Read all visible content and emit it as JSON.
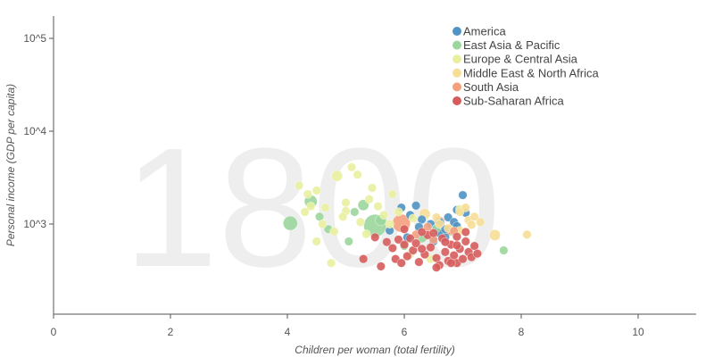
{
  "chart_data": {
    "type": "scatter",
    "year": "1800",
    "xlabel": "Children per woman (total fertility)",
    "ylabel": "Personal income (GDP per capita)",
    "xlim": [
      0,
      11
    ],
    "ylim": [
      140,
      170000
    ],
    "yscale": "log",
    "x_ticks": [
      {
        "value": 0,
        "label": "0"
      },
      {
        "value": 2,
        "label": "2"
      },
      {
        "value": 4,
        "label": "4"
      },
      {
        "value": 6,
        "label": "6"
      },
      {
        "value": 8,
        "label": "8"
      },
      {
        "value": 10,
        "label": "10"
      }
    ],
    "y_ticks": [
      {
        "value": 1000,
        "label": "10^3"
      },
      {
        "value": 10000,
        "label": "10^4"
      },
      {
        "value": 100000,
        "label": "10^5"
      }
    ],
    "legend_position": "top-right",
    "series": [
      {
        "name": "America",
        "color": "#4f94c4",
        "points": [
          {
            "x": 5.95,
            "y": 1500,
            "size": 1
          },
          {
            "x": 6.1,
            "y": 1250,
            "size": 1
          },
          {
            "x": 6.3,
            "y": 1120,
            "size": 1
          },
          {
            "x": 6.45,
            "y": 1000,
            "size": 1
          },
          {
            "x": 6.55,
            "y": 890,
            "size": 1
          },
          {
            "x": 6.6,
            "y": 800,
            "size": 1
          },
          {
            "x": 6.7,
            "y": 720,
            "size": 1
          },
          {
            "x": 6.75,
            "y": 1180,
            "size": 1
          },
          {
            "x": 6.85,
            "y": 1050,
            "size": 1
          },
          {
            "x": 6.9,
            "y": 950,
            "size": 1
          },
          {
            "x": 7.0,
            "y": 2050,
            "size": 1
          },
          {
            "x": 7.05,
            "y": 1320,
            "size": 1
          },
          {
            "x": 5.75,
            "y": 850,
            "size": 1
          },
          {
            "x": 6.25,
            "y": 930,
            "size": 1
          },
          {
            "x": 6.5,
            "y": 650,
            "size": 1
          },
          {
            "x": 6.7,
            "y": 880,
            "size": 1
          },
          {
            "x": 6.9,
            "y": 1420,
            "size": 1
          },
          {
            "x": 6.2,
            "y": 1580,
            "size": 1
          },
          {
            "x": 6.05,
            "y": 720,
            "size": 1
          },
          {
            "x": 6.6,
            "y": 1050,
            "size": 1
          }
        ]
      },
      {
        "name": "East Asia & Pacific",
        "color": "#9bd69d",
        "points": [
          {
            "x": 5.5,
            "y": 960,
            "size": 12
          },
          {
            "x": 4.05,
            "y": 1020,
            "size": 4
          },
          {
            "x": 4.4,
            "y": 1750,
            "size": 3
          },
          {
            "x": 5.3,
            "y": 1600,
            "size": 2
          },
          {
            "x": 5.6,
            "y": 1100,
            "size": 2
          },
          {
            "x": 6.3,
            "y": 720,
            "size": 2
          },
          {
            "x": 6.8,
            "y": 850,
            "size": 2
          },
          {
            "x": 4.7,
            "y": 880,
            "size": 1
          },
          {
            "x": 5.05,
            "y": 650,
            "size": 1
          },
          {
            "x": 6.0,
            "y": 580,
            "size": 1
          },
          {
            "x": 7.7,
            "y": 520,
            "size": 1
          },
          {
            "x": 6.55,
            "y": 900,
            "size": 1
          },
          {
            "x": 4.55,
            "y": 1200,
            "size": 1
          },
          {
            "x": 5.15,
            "y": 1350,
            "size": 1
          }
        ]
      },
      {
        "name": "Europe & Central Asia",
        "color": "#e9ef9f",
        "points": [
          {
            "x": 4.85,
            "y": 3300,
            "size": 2
          },
          {
            "x": 5.1,
            "y": 4100,
            "size": 1
          },
          {
            "x": 5.2,
            "y": 3400,
            "size": 1
          },
          {
            "x": 4.2,
            "y": 2600,
            "size": 1
          },
          {
            "x": 4.5,
            "y": 2300,
            "size": 1
          },
          {
            "x": 4.65,
            "y": 1500,
            "size": 1
          },
          {
            "x": 5.0,
            "y": 1380,
            "size": 1
          },
          {
            "x": 5.4,
            "y": 1850,
            "size": 1
          },
          {
            "x": 5.8,
            "y": 2100,
            "size": 1
          },
          {
            "x": 4.3,
            "y": 1350,
            "size": 1
          },
          {
            "x": 4.6,
            "y": 1000,
            "size": 1
          },
          {
            "x": 4.8,
            "y": 830,
            "size": 1
          },
          {
            "x": 5.35,
            "y": 780,
            "size": 1
          },
          {
            "x": 5.55,
            "y": 1550,
            "size": 1
          },
          {
            "x": 4.95,
            "y": 1200,
            "size": 1
          },
          {
            "x": 5.25,
            "y": 1050,
            "size": 1
          },
          {
            "x": 4.75,
            "y": 380,
            "size": 1
          },
          {
            "x": 6.1,
            "y": 470,
            "size": 1
          },
          {
            "x": 6.45,
            "y": 420,
            "size": 1
          },
          {
            "x": 4.5,
            "y": 650,
            "size": 1
          },
          {
            "x": 5.65,
            "y": 1250,
            "size": 1
          },
          {
            "x": 4.35,
            "y": 2100,
            "size": 1
          },
          {
            "x": 5.45,
            "y": 2450,
            "size": 1
          },
          {
            "x": 5.0,
            "y": 1700,
            "size": 1
          },
          {
            "x": 5.9,
            "y": 1350,
            "size": 1
          },
          {
            "x": 6.15,
            "y": 1150,
            "size": 1
          },
          {
            "x": 4.4,
            "y": 1550,
            "size": 1
          },
          {
            "x": 5.75,
            "y": 1000,
            "size": 1
          },
          {
            "x": 6.95,
            "y": 1450,
            "size": 1
          }
        ]
      },
      {
        "name": "Middle East & North Africa",
        "color": "#f6de96",
        "points": [
          {
            "x": 6.35,
            "y": 1280,
            "size": 2
          },
          {
            "x": 6.55,
            "y": 1180,
            "size": 1
          },
          {
            "x": 6.85,
            "y": 950,
            "size": 2
          },
          {
            "x": 6.95,
            "y": 1350,
            "size": 1
          },
          {
            "x": 7.05,
            "y": 1500,
            "size": 1
          },
          {
            "x": 7.1,
            "y": 1100,
            "size": 1
          },
          {
            "x": 7.15,
            "y": 980,
            "size": 1
          },
          {
            "x": 7.3,
            "y": 1050,
            "size": 1
          },
          {
            "x": 7.55,
            "y": 760,
            "size": 2
          },
          {
            "x": 8.1,
            "y": 770,
            "size": 1
          },
          {
            "x": 6.75,
            "y": 900,
            "size": 1
          },
          {
            "x": 6.95,
            "y": 850,
            "size": 1
          },
          {
            "x": 6.6,
            "y": 1000,
            "size": 1
          },
          {
            "x": 7.2,
            "y": 1200,
            "size": 1
          }
        ]
      },
      {
        "name": "South Asia",
        "color": "#f4a07d",
        "points": [
          {
            "x": 5.95,
            "y": 1020,
            "size": 7
          },
          {
            "x": 6.6,
            "y": 1050,
            "size": 2
          },
          {
            "x": 6.75,
            "y": 860,
            "size": 2
          },
          {
            "x": 6.4,
            "y": 930,
            "size": 1
          },
          {
            "x": 6.85,
            "y": 840,
            "size": 1
          },
          {
            "x": 6.2,
            "y": 770,
            "size": 1
          },
          {
            "x": 6.5,
            "y": 680,
            "size": 1
          }
        ]
      },
      {
        "name": "Sub-Saharan Africa",
        "color": "#d65c5c",
        "points": [
          {
            "x": 5.6,
            "y": 350,
            "size": 1
          },
          {
            "x": 5.85,
            "y": 420,
            "size": 1
          },
          {
            "x": 5.95,
            "y": 380,
            "size": 1
          },
          {
            "x": 6.05,
            "y": 450,
            "size": 1
          },
          {
            "x": 6.15,
            "y": 520,
            "size": 1
          },
          {
            "x": 6.25,
            "y": 390,
            "size": 1
          },
          {
            "x": 6.35,
            "y": 470,
            "size": 1
          },
          {
            "x": 6.45,
            "y": 560,
            "size": 1
          },
          {
            "x": 6.55,
            "y": 430,
            "size": 1
          },
          {
            "x": 6.6,
            "y": 360,
            "size": 1
          },
          {
            "x": 6.7,
            "y": 500,
            "size": 1
          },
          {
            "x": 6.75,
            "y": 400,
            "size": 1
          },
          {
            "x": 6.8,
            "y": 600,
            "size": 1
          },
          {
            "x": 6.85,
            "y": 460,
            "size": 1
          },
          {
            "x": 6.9,
            "y": 380,
            "size": 1
          },
          {
            "x": 6.95,
            "y": 540,
            "size": 1
          },
          {
            "x": 7.0,
            "y": 420,
            "size": 1
          },
          {
            "x": 7.05,
            "y": 650,
            "size": 1
          },
          {
            "x": 7.1,
            "y": 500,
            "size": 1
          },
          {
            "x": 7.15,
            "y": 440,
            "size": 1
          },
          {
            "x": 7.2,
            "y": 580,
            "size": 1
          },
          {
            "x": 7.25,
            "y": 480,
            "size": 1
          },
          {
            "x": 5.5,
            "y": 720,
            "size": 1
          },
          {
            "x": 5.7,
            "y": 640,
            "size": 1
          },
          {
            "x": 5.8,
            "y": 550,
            "size": 1
          },
          {
            "x": 5.9,
            "y": 680,
            "size": 1
          },
          {
            "x": 6.0,
            "y": 600,
            "size": 1
          },
          {
            "x": 6.1,
            "y": 700,
            "size": 1
          },
          {
            "x": 6.2,
            "y": 620,
            "size": 1
          },
          {
            "x": 6.3,
            "y": 540,
            "size": 1
          },
          {
            "x": 6.4,
            "y": 760,
            "size": 1
          },
          {
            "x": 6.5,
            "y": 800,
            "size": 1
          },
          {
            "x": 6.65,
            "y": 700,
            "size": 1
          },
          {
            "x": 6.9,
            "y": 730,
            "size": 1
          },
          {
            "x": 7.05,
            "y": 820,
            "size": 1
          },
          {
            "x": 6.55,
            "y": 340,
            "size": 1
          },
          {
            "x": 6.3,
            "y": 820,
            "size": 1
          },
          {
            "x": 6.7,
            "y": 640,
            "size": 1
          },
          {
            "x": 6.9,
            "y": 590,
            "size": 1
          },
          {
            "x": 5.3,
            "y": 420,
            "size": 1
          },
          {
            "x": 6.0,
            "y": 880,
            "size": 1
          },
          {
            "x": 6.8,
            "y": 380,
            "size": 1
          }
        ]
      }
    ]
  }
}
